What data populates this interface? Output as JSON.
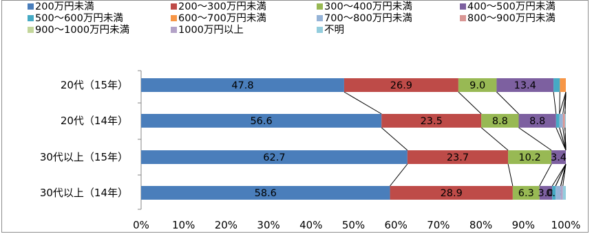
{
  "chart_data": {
    "type": "bar",
    "orientation": "horizontal",
    "stacked": "percent",
    "categories": [
      "20代（15年）",
      "20代（14年）",
      "30代以上（15年）",
      "30代以上（14年）"
    ],
    "series": [
      {
        "name": "200万円未満",
        "color": "#4a7ebb",
        "values": [
          47.8,
          56.6,
          62.7,
          58.6
        ],
        "labels": [
          "47.8",
          "56.6",
          "62.7",
          "58.6"
        ]
      },
      {
        "name": "200～300万円未満",
        "color": "#be4b48",
        "values": [
          26.9,
          23.5,
          23.7,
          28.9
        ],
        "labels": [
          "26.9",
          "23.5",
          "23.7",
          "28.9"
        ]
      },
      {
        "name": "300～400万円未満",
        "color": "#98b954",
        "values": [
          9.0,
          8.8,
          10.2,
          6.3
        ],
        "labels": [
          "9.0",
          "8.8",
          "10.2",
          "6.3"
        ]
      },
      {
        "name": "400～500万円未満",
        "color": "#7d60a0",
        "values": [
          13.4,
          8.8,
          3.4,
          3.0
        ],
        "labels": [
          "13.4",
          "8.8",
          "3.4",
          "3.0"
        ]
      },
      {
        "name": "500～600万円未満",
        "color": "#46aac4",
        "values": [
          1.5,
          0.8,
          0,
          0.8
        ],
        "labels": [
          "",
          "",
          "",
          "0.8"
        ]
      },
      {
        "name": "600～700万円未満",
        "color": "#f79646",
        "values": [
          1.4,
          0,
          0,
          0
        ],
        "labels": [
          "",
          "",
          "",
          ""
        ]
      },
      {
        "name": "700～800万円未満",
        "color": "#95b3d7",
        "values": [
          0,
          0.8,
          0,
          1.2
        ],
        "labels": [
          "",
          "",
          "",
          ""
        ]
      },
      {
        "name": "800～900万円未満",
        "color": "#d99694",
        "values": [
          0,
          0.5,
          0,
          0
        ],
        "labels": [
          "",
          "",
          "",
          ""
        ]
      },
      {
        "name": "900～1000万円未満",
        "color": "#c3d69b",
        "values": [
          0,
          0,
          0,
          0
        ],
        "labels": [
          "",
          "",
          "",
          ""
        ]
      },
      {
        "name": "1000万円以上",
        "color": "#b3a2c7",
        "values": [
          0,
          0,
          0,
          0.5
        ],
        "labels": [
          "",
          "",
          "",
          ""
        ]
      },
      {
        "name": "不明",
        "color": "#93cddd",
        "values": [
          0,
          1.0,
          0,
          0.7
        ],
        "labels": [
          "",
          "",
          "",
          ""
        ]
      }
    ],
    "xlim": [
      0,
      100
    ],
    "x_ticks": [
      "0%",
      "10%",
      "20%",
      "30%",
      "40%",
      "50%",
      "60%",
      "70%",
      "80%",
      "90%",
      "100%"
    ],
    "series_lines": true,
    "grid": false,
    "legend_position": "top",
    "xlabel": "",
    "ylabel": ""
  }
}
